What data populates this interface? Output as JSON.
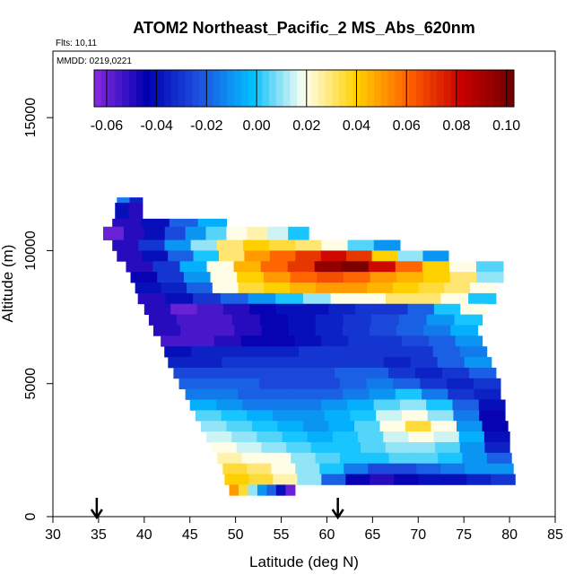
{
  "header": {
    "title": "ATOM2 Northeast_Pacific_2 MS_Abs_620nm",
    "flights": "Flts: 10,11",
    "dates": "MMDD: 0219,0221"
  },
  "chart_data": {
    "type": "heatmap",
    "title": "ATOM2 Northeast_Pacific_2 MS_Abs_620nm",
    "xlabel": "Latitude (deg N)",
    "ylabel": "Altitude (m)",
    "xlim": [
      30,
      85
    ],
    "ylim": [
      0,
      17500
    ],
    "xticks": [
      "30",
      "35",
      "40",
      "45",
      "50",
      "55",
      "60",
      "65",
      "70",
      "75",
      "80",
      "85"
    ],
    "yticks": [
      "0",
      "5000",
      "10000",
      "15000"
    ],
    "colorbar": {
      "range": [
        -0.065,
        0.103
      ],
      "ticks": [
        "-0.06",
        "-0.04",
        "-0.02",
        "0.00",
        "0.02",
        "0.04",
        "0.06",
        "0.08",
        "0.10"
      ],
      "tick_values": [
        -0.06,
        -0.04,
        -0.02,
        0.0,
        0.02,
        0.04,
        0.06,
        0.08,
        0.1
      ],
      "colors": [
        "#8a2be2",
        "#0000b0",
        "#1e50e0",
        "#00bfff",
        "#fffff0",
        "#ffd000",
        "#ff6000",
        "#c80000",
        "#700000"
      ]
    },
    "arrows_latitude": [
      34.8,
      61.2
    ],
    "profiles": [
      {
        "alt_bottom": 11800,
        "alt_top": 12000,
        "lat_start": 37.0,
        "lat_end": 39.8,
        "values": [
          -0.015,
          -0.035
        ]
      },
      {
        "alt_bottom": 11200,
        "alt_top": 11800,
        "lat_start": 36.8,
        "lat_end": 39.8,
        "values": [
          -0.04,
          -0.05
        ]
      },
      {
        "alt_bottom": 10900,
        "alt_top": 11200,
        "lat_start": 36.5,
        "lat_end": 49.0,
        "values": [
          -0.05,
          -0.04,
          -0.02,
          -0.005
        ]
      },
      {
        "alt_bottom": 10400,
        "alt_top": 10900,
        "lat_start": 35.5,
        "lat_end": 58.0,
        "values": [
          -0.06,
          -0.05,
          -0.04,
          -0.025,
          -0.01,
          0.005,
          0.02,
          0.025,
          0.015,
          0.0
        ]
      },
      {
        "alt_bottom": 10000,
        "alt_top": 10400,
        "lat_start": 36.5,
        "lat_end": 68.0,
        "values": [
          -0.05,
          -0.03,
          -0.01,
          0.01,
          0.03,
          0.04,
          0.035,
          0.03,
          0.02,
          0.005,
          -0.01
        ]
      },
      {
        "alt_bottom": 9600,
        "alt_top": 10000,
        "lat_start": 37.0,
        "lat_end": 73.3,
        "values": [
          -0.05,
          -0.04,
          -0.02,
          0.0,
          0.03,
          0.05,
          0.06,
          0.07,
          0.08,
          0.07,
          0.04,
          0.01,
          -0.01
        ]
      },
      {
        "alt_bottom": 9200,
        "alt_top": 9600,
        "lat_start": 38.0,
        "lat_end": 79.3,
        "values": [
          -0.05,
          -0.03,
          -0.005,
          0.02,
          0.045,
          0.06,
          0.07,
          0.095,
          0.1,
          0.08,
          0.06,
          0.04,
          0.02,
          0.005
        ]
      },
      {
        "alt_bottom": 8800,
        "alt_top": 9200,
        "lat_start": 38.5,
        "lat_end": 79.3,
        "values": [
          -0.045,
          -0.03,
          -0.01,
          0.02,
          0.04,
          0.05,
          0.06,
          0.065,
          0.06,
          0.05,
          0.045,
          0.04,
          0.03,
          0.01
        ]
      },
      {
        "alt_bottom": 8400,
        "alt_top": 8800,
        "lat_start": 39.0,
        "lat_end": 78.5,
        "values": [
          -0.04,
          -0.035,
          -0.02,
          0.02,
          0.035,
          0.04,
          0.045,
          0.05,
          0.05,
          0.045,
          0.04,
          0.035,
          0.03,
          0.02
        ]
      },
      {
        "alt_bottom": 8000,
        "alt_top": 8400,
        "lat_start": 39.3,
        "lat_end": 78.5,
        "values": [
          -0.05,
          -0.04,
          -0.03,
          -0.02,
          -0.01,
          0.0,
          0.01,
          0.02,
          0.02,
          0.03,
          0.03,
          0.02,
          0.0
        ]
      },
      {
        "alt_bottom": 7600,
        "alt_top": 8000,
        "lat_start": 40.0,
        "lat_end": 77.5,
        "values": [
          -0.05,
          -0.06,
          -0.055,
          -0.05,
          -0.045,
          -0.04,
          -0.04,
          -0.035,
          -0.03,
          -0.03,
          -0.02,
          0.0,
          0.02
        ]
      },
      {
        "alt_bottom": 7200,
        "alt_top": 7600,
        "lat_start": 40.5,
        "lat_end": 77.0,
        "values": [
          -0.05,
          -0.055,
          -0.055,
          -0.05,
          -0.045,
          -0.04,
          -0.035,
          -0.03,
          -0.025,
          -0.02,
          -0.01,
          0.0
        ]
      },
      {
        "alt_bottom": 6800,
        "alt_top": 7200,
        "lat_start": 41.0,
        "lat_end": 76.5,
        "values": [
          -0.05,
          -0.055,
          -0.055,
          -0.05,
          -0.045,
          -0.04,
          -0.035,
          -0.03,
          -0.025,
          -0.02,
          -0.015,
          -0.005
        ]
      },
      {
        "alt_bottom": 6400,
        "alt_top": 6800,
        "lat_start": 41.8,
        "lat_end": 77.0,
        "values": [
          -0.055,
          -0.055,
          -0.05,
          -0.045,
          -0.045,
          -0.04,
          -0.035,
          -0.03,
          -0.03,
          -0.025,
          -0.02,
          -0.01
        ]
      },
      {
        "alt_bottom": 6000,
        "alt_top": 6400,
        "lat_start": 42.2,
        "lat_end": 77.5,
        "values": [
          -0.04,
          -0.035,
          -0.035,
          -0.035,
          -0.035,
          -0.03,
          -0.03,
          -0.03,
          -0.03,
          -0.03,
          -0.02,
          -0.015
        ]
      },
      {
        "alt_bottom": 5600,
        "alt_top": 6000,
        "lat_start": 42.6,
        "lat_end": 78.0,
        "values": [
          -0.035,
          -0.035,
          -0.03,
          -0.03,
          -0.03,
          -0.03,
          -0.03,
          -0.03,
          -0.035,
          -0.03,
          -0.02,
          -0.01
        ]
      },
      {
        "alt_bottom": 5200,
        "alt_top": 5600,
        "lat_start": 43.2,
        "lat_end": 78.5,
        "values": [
          -0.025,
          -0.025,
          -0.025,
          -0.025,
          -0.025,
          -0.025,
          -0.02,
          -0.02,
          -0.03,
          -0.035,
          -0.03,
          -0.02
        ]
      },
      {
        "alt_bottom": 4800,
        "alt_top": 5200,
        "lat_start": 43.8,
        "lat_end": 79.0,
        "values": [
          -0.02,
          -0.02,
          -0.02,
          -0.025,
          -0.025,
          -0.025,
          -0.02,
          -0.015,
          -0.02,
          -0.03,
          -0.035,
          -0.03
        ]
      },
      {
        "alt_bottom": 4400,
        "alt_top": 4800,
        "lat_start": 44.5,
        "lat_end": 79.0,
        "values": [
          -0.015,
          -0.015,
          -0.02,
          -0.02,
          -0.02,
          -0.02,
          -0.015,
          -0.01,
          0.0,
          -0.015,
          -0.03,
          -0.035
        ]
      },
      {
        "alt_bottom": 4000,
        "alt_top": 4400,
        "lat_start": 45.0,
        "lat_end": 79.5,
        "values": [
          -0.005,
          -0.01,
          -0.015,
          -0.015,
          -0.015,
          -0.01,
          -0.005,
          0.005,
          0.01,
          0.0,
          -0.02,
          -0.04
        ]
      },
      {
        "alt_bottom": 3600,
        "alt_top": 4000,
        "lat_start": 45.6,
        "lat_end": 79.5,
        "values": [
          0.005,
          0.0,
          -0.005,
          -0.01,
          -0.01,
          -0.005,
          0.0,
          0.015,
          0.02,
          0.01,
          -0.015,
          -0.045
        ]
      },
      {
        "alt_bottom": 3200,
        "alt_top": 3600,
        "lat_start": 46.2,
        "lat_end": 79.8,
        "values": [
          0.01,
          0.005,
          0.0,
          -0.005,
          -0.01,
          -0.005,
          0.005,
          0.02,
          0.035,
          0.02,
          -0.01,
          -0.045
        ]
      },
      {
        "alt_bottom": 2800,
        "alt_top": 3200,
        "lat_start": 46.8,
        "lat_end": 80.0,
        "values": [
          0.015,
          0.01,
          0.005,
          0.0,
          -0.005,
          0.0,
          0.005,
          0.015,
          0.02,
          0.015,
          -0.005,
          -0.04
        ]
      },
      {
        "alt_bottom": 2400,
        "alt_top": 2800,
        "lat_start": 47.4,
        "lat_end": 80.0,
        "values": [
          0.02,
          0.015,
          0.01,
          0.005,
          0.0,
          0.0,
          0.005,
          0.01,
          0.01,
          0.005,
          -0.01,
          -0.035
        ]
      },
      {
        "alt_bottom": 2000,
        "alt_top": 2400,
        "lat_start": 48.0,
        "lat_end": 80.2,
        "values": [
          0.025,
          0.02,
          0.02,
          0.01,
          0.005,
          0.0,
          0.0,
          0.005,
          0.005,
          0.0,
          -0.01,
          -0.02
        ]
      },
      {
        "alt_bottom": 1600,
        "alt_top": 2000,
        "lat_start": 48.6,
        "lat_end": 80.4,
        "values": [
          0.035,
          0.03,
          0.02,
          0.01,
          0.0,
          -0.015,
          -0.025,
          -0.025,
          -0.02,
          -0.015,
          -0.01,
          -0.01
        ]
      },
      {
        "alt_bottom": 1200,
        "alt_top": 1600,
        "lat_start": 48.8,
        "lat_end": 80.6,
        "values": [
          0.04,
          0.035,
          0.025,
          0.01,
          -0.02,
          -0.045,
          -0.05,
          -0.045,
          -0.04,
          -0.04,
          -0.035,
          -0.03
        ]
      },
      {
        "alt_bottom": 800,
        "alt_top": 1200,
        "lat_start": 49.3,
        "lat_end": 56.5,
        "values": [
          0.05,
          0.035,
          0.01,
          -0.01,
          -0.02,
          -0.04,
          -0.06
        ]
      }
    ]
  }
}
